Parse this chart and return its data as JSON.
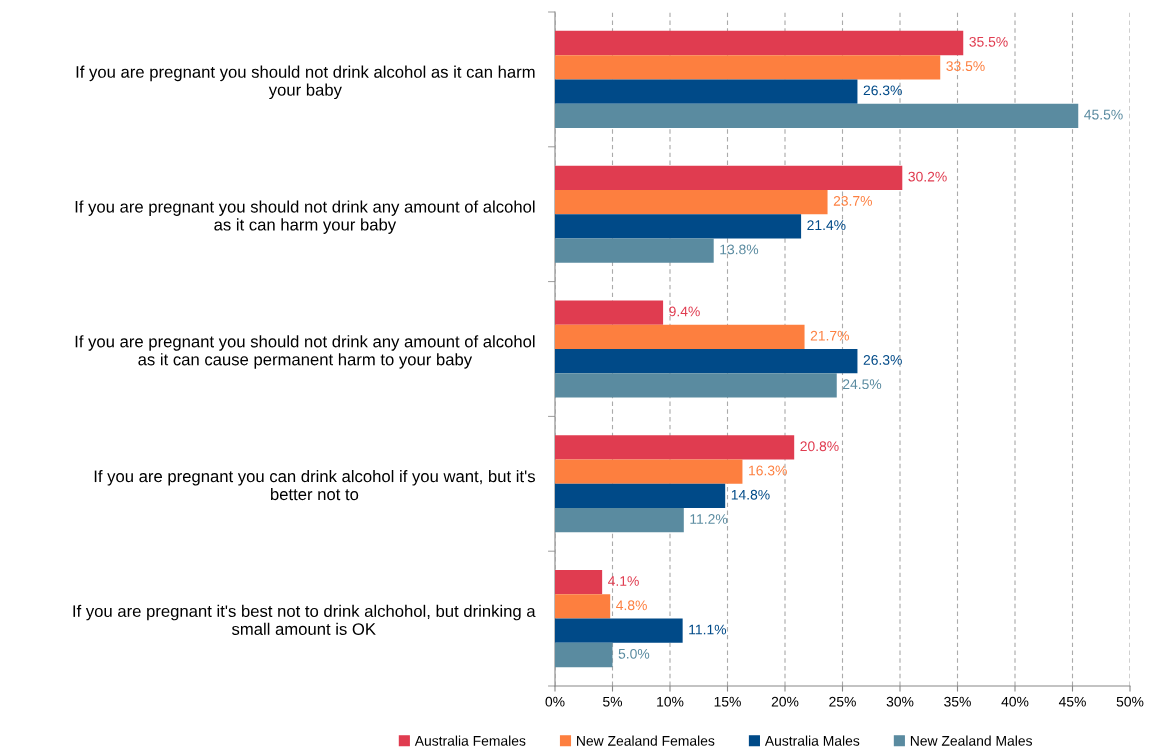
{
  "chart_data": {
    "type": "bar",
    "orientation": "horizontal",
    "categories": [
      "If you are pregnant you should not drink alcohol as it can harm\nyour baby",
      "If you are pregnant you should not drink any amount of alcohol\nas it can harm your baby",
      "If you are pregnant you should not drink any amount of alcohol\nas it can cause permanent harm to your baby",
      "If you are pregnant you can drink alcohol if you want, but it's\nbetter not to",
      "If you are pregnant it's best not to drink alchohol, but drinking a\nsmall amount is OK"
    ],
    "series": [
      {
        "name": "Australia Females",
        "color": "#e03c50",
        "values": [
          35.5,
          30.2,
          9.4,
          20.8,
          4.1
        ],
        "value_labels": [
          "35.5%",
          "30.2%",
          "9.4%",
          "20.8%",
          "4.1%"
        ]
      },
      {
        "name": "New Zealand Females",
        "color": "#fd7f3f",
        "values": [
          33.5,
          23.7,
          21.7,
          16.3,
          4.8
        ],
        "value_labels": [
          "33.5%",
          "23.7%",
          "21.7%",
          "16.3%",
          "4.8%"
        ]
      },
      {
        "name": "Australia Males",
        "color": "#004a88",
        "values": [
          26.3,
          21.4,
          26.3,
          14.8,
          11.1
        ],
        "value_labels": [
          "26.3%",
          "21.4%",
          "26.3%",
          "14.8%",
          "11.1%"
        ]
      },
      {
        "name": "New Zealand Males",
        "color": "#5a8ba0",
        "values": [
          45.5,
          13.8,
          24.5,
          11.2,
          5.0
        ],
        "value_labels": [
          "45.5%",
          "13.8%",
          "24.5%",
          "11.2%",
          "5.0%"
        ]
      }
    ],
    "xlim": [
      0,
      50
    ],
    "xticks": [
      {
        "value": 0,
        "label": "0%"
      },
      {
        "value": 5,
        "label": "5%"
      },
      {
        "value": 10,
        "label": "10%"
      },
      {
        "value": 15,
        "label": "15%"
      },
      {
        "value": 20,
        "label": "20%"
      },
      {
        "value": 25,
        "label": "25%"
      },
      {
        "value": 30,
        "label": "30%"
      },
      {
        "value": 35,
        "label": "35%"
      },
      {
        "value": 40,
        "label": "40%"
      },
      {
        "value": 45,
        "label": "45%"
      },
      {
        "value": 50,
        "label": "50%"
      }
    ],
    "grid": "x",
    "legend": "bottom"
  }
}
